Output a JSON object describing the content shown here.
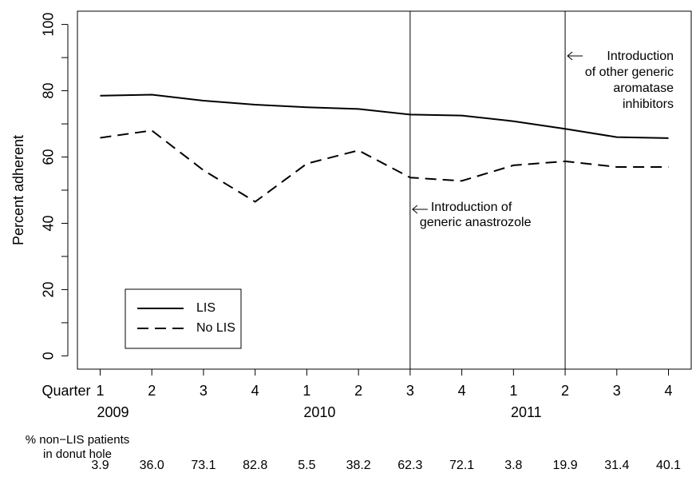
{
  "chart_data": {
    "type": "line",
    "ylabel": "Percent adherent",
    "x": [
      1,
      2,
      3,
      4,
      5,
      6,
      7,
      8,
      9,
      10,
      11,
      12
    ],
    "xlim": [
      0.56,
      12.44
    ],
    "xticks": [
      1,
      2,
      3,
      4,
      {
        "value": 5,
        "label": "1"
      },
      {
        "value": 6,
        "label": "2"
      },
      {
        "value": 7,
        "label": "3"
      },
      {
        "value": 8,
        "label": "4"
      },
      {
        "value": 9,
        "label": "1"
      },
      {
        "value": 10,
        "label": "2"
      },
      {
        "value": 11,
        "label": "3"
      },
      {
        "value": 12,
        "label": "4"
      }
    ],
    "xtick_prefix": "Quarter",
    "year_groups": [
      {
        "label": "2009",
        "x": 1
      },
      {
        "label": "2010",
        "x": 5
      },
      {
        "label": "2011",
        "x": 9
      }
    ],
    "ylim": [
      -4,
      104
    ],
    "yticks": [
      0,
      20,
      40,
      60,
      80,
      100
    ],
    "yminorticks": [
      10,
      30,
      50,
      70,
      90
    ],
    "series": [
      {
        "name": "LIS",
        "color": "#000000",
        "dash": "solid",
        "values": [
          78.5,
          78.8,
          77,
          75.8,
          75,
          74.5,
          72.8,
          72.5,
          70.8,
          68.5,
          66,
          65.7
        ]
      },
      {
        "name": "No LIS",
        "color": "#000000",
        "dash": "dashed",
        "values": [
          65.8,
          68,
          56,
          46.5,
          58,
          62,
          53.8,
          52.8,
          57.5,
          58.7,
          57,
          57
        ]
      }
    ],
    "legend": "bottom-left",
    "annotations": [
      {
        "x": 7,
        "text": [
          "Introduction of",
          "generic anastrozole"
        ]
      },
      {
        "x": 10,
        "text": [
          "Introduction",
          "of other generic",
          "aromatase",
          "inhibitors"
        ]
      }
    ],
    "donut_hole": {
      "label": [
        "% non−LIS patients",
        "in donut hole"
      ],
      "values": [
        3.9,
        36,
        73.1,
        82.8,
        5.5,
        38.2,
        62.3,
        72.1,
        3.8,
        19.9,
        31.4,
        40.1
      ],
      "value_labels": [
        "3.9",
        "36.0",
        "73.1",
        "82.8",
        "5.5",
        "38.2",
        "62.3",
        "72.1",
        "3.8",
        "19.9",
        "31.4",
        "40.1"
      ]
    }
  }
}
